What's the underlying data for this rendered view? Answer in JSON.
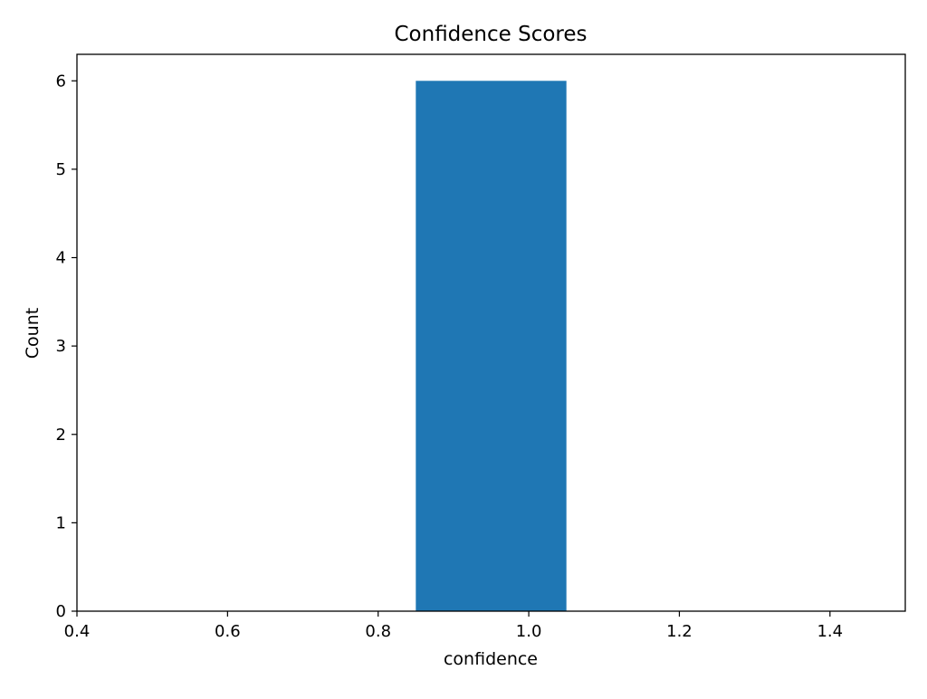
{
  "chart_data": {
    "type": "bar",
    "title": "Confidence Scores",
    "xlabel": "confidence",
    "ylabel": "Count",
    "xlim": [
      0.4,
      1.5
    ],
    "ylim": [
      0,
      6.3
    ],
    "x_ticks": [
      0.4,
      0.6,
      0.8,
      1.0,
      1.2,
      1.4
    ],
    "x_tick_labels": [
      "0.4",
      "0.6",
      "0.8",
      "1.0",
      "1.2",
      "1.4"
    ],
    "y_ticks": [
      0,
      1,
      2,
      3,
      4,
      5,
      6
    ],
    "y_tick_labels": [
      "0",
      "1",
      "2",
      "3",
      "4",
      "5",
      "6"
    ],
    "bars": [
      {
        "x_start": 0.85,
        "x_end": 1.05,
        "value": 6
      }
    ],
    "bar_color": "#1f77b4",
    "grid": false,
    "legend": false
  }
}
